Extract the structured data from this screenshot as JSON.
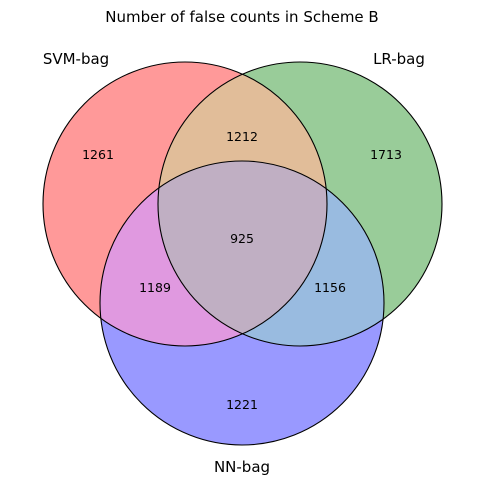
{
  "title": "Number of false counts in Scheme B",
  "sets": {
    "a": {
      "label": "SVM-bag",
      "color": "#ff9999"
    },
    "b": {
      "label": "LR-bag",
      "color": "#99cc99"
    },
    "c": {
      "label": "NN-bag",
      "color": "#9999ff"
    }
  },
  "regions": {
    "a_only": "1261",
    "b_only": "1713",
    "c_only": "1221",
    "ab": "1212",
    "ac": "1189",
    "bc": "1156",
    "abc": "925"
  },
  "region_colors": {
    "ab": "#e1bd99",
    "ac": "#e099e0",
    "bc": "#99bbe0",
    "abc": "#c0afc3"
  }
}
